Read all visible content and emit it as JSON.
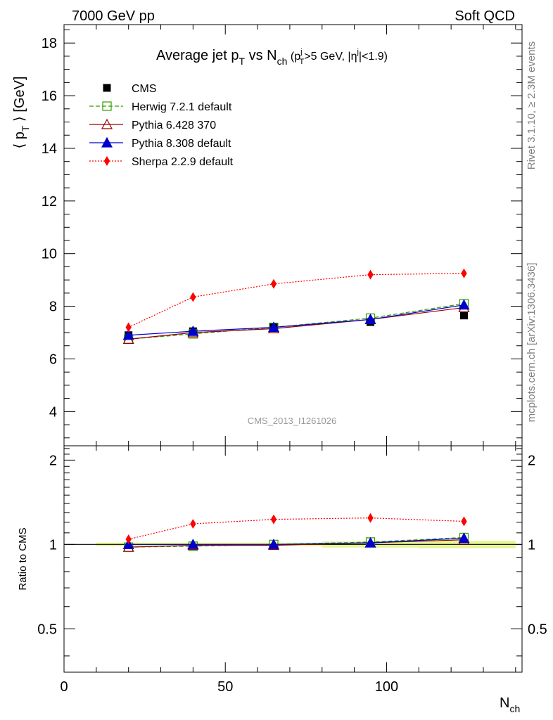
{
  "header": {
    "left": "7000 GeV pp",
    "right": "Soft QCD"
  },
  "side_text": {
    "rivet": "Rivet 3.1.10, ≥ 2.3M events",
    "mcplots": "mcplots.cern.ch [arXiv:1306.3436]"
  },
  "analysis_label": "CMS_2013_I1261026",
  "chart_data": {
    "type": "line",
    "title": {
      "main": "Average jet p",
      "main_sub": "T",
      "vs": " vs N",
      "vs_sub": "ch",
      "cut_open": " (p",
      "cut_sup": "j",
      "cut_sub": "T",
      "cut_mid": ">5 GeV, |η",
      "cut_sup2": "j",
      "cut_close": "|<1.9)"
    },
    "xlabel": {
      "main": "N",
      "sub": "ch"
    },
    "ylabel": {
      "open": "⟨ p",
      "sub": "T",
      "close": " ⟩ [GeV]"
    },
    "ratio_ylabel": "Ratio to CMS",
    "xlim": [
      0,
      142
    ],
    "ylim": [
      2.7,
      18.7
    ],
    "ratio_ylim": [
      0.35,
      2.25
    ],
    "ratio_scale": "log",
    "x_ticks": [
      0,
      50,
      100
    ],
    "y_ticks": [
      4,
      6,
      8,
      10,
      12,
      14,
      16,
      18
    ],
    "ratio_ticks": [
      0.5,
      1,
      2
    ],
    "x": [
      20,
      40,
      65,
      95,
      124
    ],
    "data": {
      "name": "CMS",
      "values": [
        6.9,
        7.05,
        7.2,
        7.4,
        7.65
      ],
      "band_lo": [
        0.985,
        0.985,
        0.985,
        0.975,
        0.97
      ],
      "band_hi": [
        1.015,
        1.015,
        1.015,
        1.025,
        1.03
      ]
    },
    "series": [
      {
        "name": "Herwig 7.2.1 default",
        "color": "#339900",
        "marker": "open-square",
        "dash": "dashed",
        "values": [
          6.75,
          6.95,
          7.2,
          7.55,
          8.1
        ]
      },
      {
        "name": "Pythia 6.428 370",
        "color": "#990000",
        "marker": "open-triangle",
        "dash": "solid",
        "values": [
          6.75,
          7.0,
          7.15,
          7.5,
          7.95
        ]
      },
      {
        "name": "Pythia 8.308 default",
        "color": "#0000cc",
        "marker": "filled-triangle",
        "dash": "solid",
        "values": [
          6.9,
          7.05,
          7.2,
          7.5,
          8.05
        ]
      },
      {
        "name": "Sherpa 2.2.9 default",
        "color": "#ff0000",
        "marker": "filled-diamond",
        "dash": "dotted",
        "values": [
          7.2,
          8.35,
          8.85,
          9.2,
          9.25
        ]
      }
    ],
    "legend_position": "top-left"
  }
}
